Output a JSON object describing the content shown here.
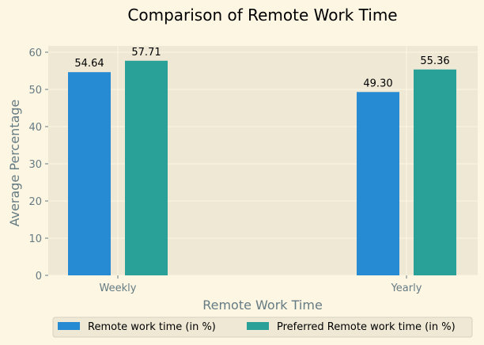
{
  "chart_data": {
    "type": "bar",
    "title": "Comparison of Remote Work Time",
    "xlabel": "Remote Work Time",
    "ylabel": "Average Percentage",
    "categories": [
      "Weekly",
      "Yearly"
    ],
    "series": [
      {
        "name": "Remote work time (in %)",
        "values": [
          54.64,
          49.3
        ],
        "labels": [
          "54.64",
          "49.30"
        ],
        "color": "#268bd2"
      },
      {
        "name": "Preferred Remote work time (in %)",
        "values": [
          57.71,
          55.36
        ],
        "labels": [
          "57.71",
          "55.36"
        ],
        "color": "#2aa198"
      }
    ],
    "ylim": [
      0,
      60
    ],
    "yticks": [
      0,
      10,
      20,
      30,
      40,
      50,
      60
    ],
    "grid": true,
    "legend_position": "bottom-center"
  },
  "colors": {
    "figure_background": "#fdf6e3",
    "plot_background": "#eee8d5",
    "grid": "#fdf6e3",
    "axis_text": "#657b83"
  }
}
